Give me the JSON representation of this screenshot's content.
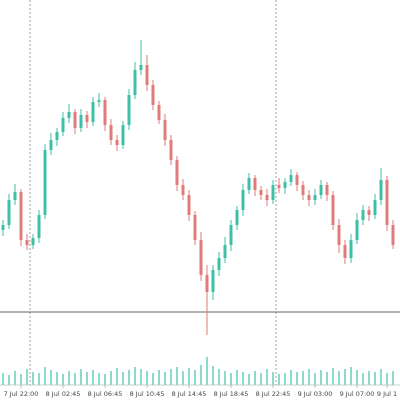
{
  "chart_data": {
    "type": "candlestick",
    "categories": [
      null,
      null,
      null,
      "7 Jul 22:00",
      null,
      null,
      null,
      null,
      null,
      null,
      "8 Jul 02:45",
      null,
      null,
      null,
      null,
      null,
      null,
      "8 Jul 06:45",
      null,
      null,
      null,
      null,
      null,
      null,
      "8 Jul 10:45",
      null,
      null,
      null,
      null,
      null,
      null,
      "8 Jul 14:45",
      null,
      null,
      null,
      null,
      null,
      null,
      "8 Jul 18:45",
      null,
      null,
      null,
      null,
      null,
      null,
      "8 Jul 22:45",
      null,
      null,
      null,
      null,
      null,
      null,
      "9 Jul 03:00",
      null,
      null,
      null,
      null,
      null,
      null,
      "9 Jul 07:00",
      null,
      null,
      null,
      null,
      "9 Jul 1",
      null
    ],
    "open": [
      110,
      115,
      140,
      148,
      100,
      95,
      102,
      125,
      190,
      200,
      208,
      222,
      228,
      212,
      225,
      218,
      238,
      240,
      215,
      200,
      195,
      215,
      245,
      270,
      275,
      255,
      235,
      220,
      200,
      180,
      155,
      145,
      125,
      100,
      65,
      48,
      70,
      82,
      95,
      115,
      130,
      150,
      162,
      150,
      145,
      140,
      155,
      152,
      158,
      165,
      155,
      145,
      140,
      145,
      155,
      145,
      115,
      95,
      82,
      100,
      120,
      130,
      125,
      140,
      160,
      115
    ],
    "high": [
      120,
      146,
      156,
      151,
      106,
      106,
      130,
      196,
      207,
      212,
      228,
      236,
      231,
      231,
      229,
      243,
      247,
      243,
      221,
      205,
      219,
      251,
      278,
      300,
      285,
      260,
      239,
      226,
      205,
      184,
      161,
      150,
      129,
      108,
      75,
      75,
      88,
      103,
      120,
      134,
      156,
      167,
      165,
      154,
      151,
      160,
      162,
      162,
      171,
      168,
      159,
      150,
      151,
      160,
      158,
      149,
      121,
      100,
      106,
      127,
      135,
      134,
      146,
      172,
      164,
      120
    ],
    "low": [
      104,
      111,
      135,
      94,
      90,
      91,
      97,
      121,
      185,
      194,
      204,
      217,
      206,
      208,
      212,
      214,
      233,
      209,
      195,
      189,
      191,
      210,
      241,
      265,
      249,
      230,
      216,
      194,
      175,
      149,
      140,
      119,
      95,
      59,
      5,
      40,
      64,
      77,
      89,
      110,
      124,
      146,
      144,
      140,
      134,
      136,
      147,
      146,
      154,
      149,
      140,
      134,
      135,
      141,
      139,
      110,
      87,
      76,
      77,
      96,
      115,
      119,
      121,
      135,
      109,
      91
    ],
    "close": [
      115,
      140,
      148,
      100,
      95,
      102,
      125,
      190,
      200,
      208,
      222,
      228,
      212,
      225,
      218,
      238,
      240,
      215,
      200,
      195,
      215,
      245,
      270,
      275,
      255,
      235,
      220,
      200,
      180,
      155,
      145,
      125,
      100,
      65,
      48,
      70,
      82,
      95,
      115,
      130,
      150,
      162,
      150,
      145,
      140,
      155,
      152,
      158,
      165,
      155,
      145,
      140,
      145,
      155,
      145,
      115,
      95,
      82,
      100,
      120,
      130,
      125,
      140,
      160,
      115,
      95
    ],
    "volume": [
      12,
      10,
      14,
      11,
      16,
      13,
      12,
      18,
      15,
      13,
      11,
      14,
      12,
      16,
      13,
      15,
      12,
      11,
      14,
      17,
      13,
      15,
      18,
      16,
      14,
      12,
      15,
      13,
      16,
      18,
      14,
      17,
      15,
      20,
      28,
      19,
      16,
      14,
      12,
      15,
      13,
      11,
      14,
      12,
      16,
      13,
      11,
      12,
      15,
      13,
      14,
      16,
      12,
      15,
      13,
      17,
      14,
      16,
      18,
      15,
      12,
      14,
      13,
      16,
      12,
      14
    ],
    "ylim": [
      0,
      340
    ],
    "volume_ylim": [
      0,
      40
    ],
    "hline": 28,
    "up_color": "#3fbfa8",
    "down_color": "#e07b7b",
    "volume_color": "#8fd8cc"
  }
}
